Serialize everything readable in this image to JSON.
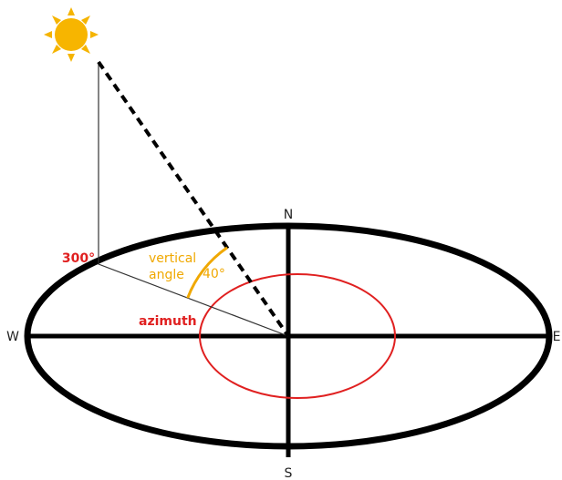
{
  "labels": {
    "north": "N",
    "south": "S",
    "west": "W",
    "east": "E",
    "azimuth_value": "300°",
    "vertical": "vertical",
    "angle": "angle",
    "angle_value": "40°",
    "azimuth": "azimuth"
  }
}
